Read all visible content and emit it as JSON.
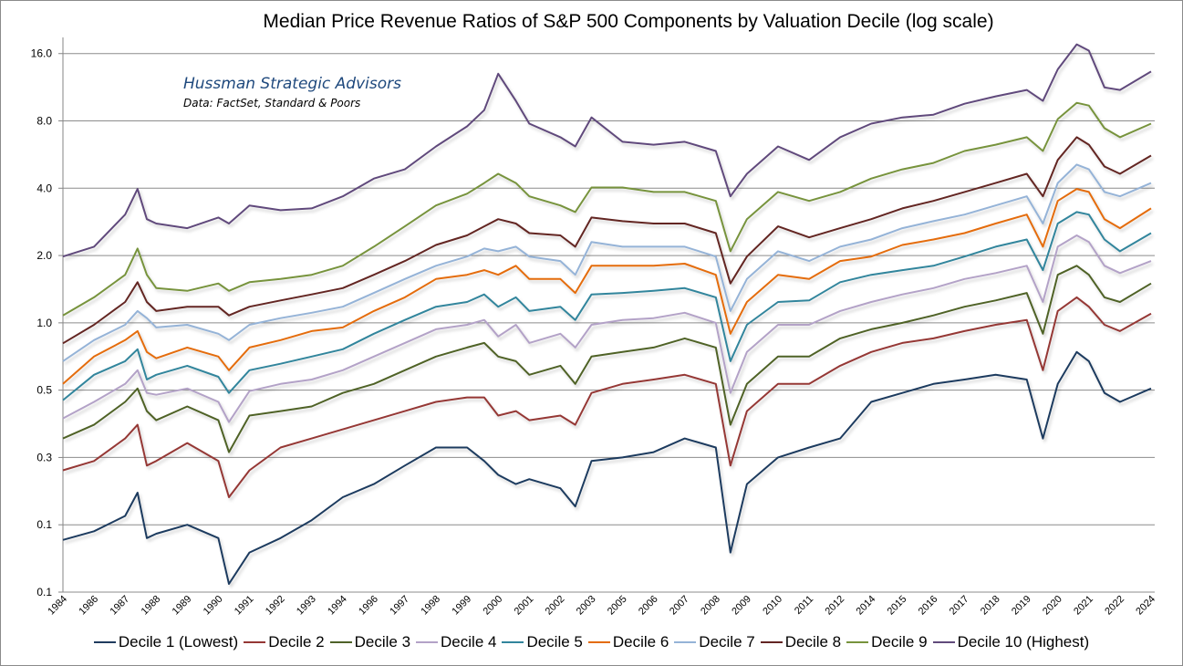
{
  "chart_data": {
    "type": "line",
    "title": "Median Price Revenue Ratios of S&P 500 Components by Valuation Decile (log scale)",
    "annotation": {
      "line1": "Hussman Strategic Advisors",
      "line2": "Data: FactSet, Standard & Poors"
    },
    "y_scale": "log2",
    "ylim": [
      0.0625,
      18.9
    ],
    "y_ticks": [
      16,
      8,
      4,
      2,
      1,
      0.5,
      0.25,
      0.125,
      0.0625
    ],
    "y_tick_labels": [
      "16.0",
      "8.0",
      "4.0",
      "2.0",
      "1.0",
      "0.5",
      "0.3",
      "0.1",
      "0.1"
    ],
    "x_tick_labels": [
      "1984",
      "1986",
      "1987",
      "1988",
      "1989",
      "1990",
      "1991",
      "1992",
      "1993",
      "1994",
      "1996",
      "1997",
      "1998",
      "1999",
      "2000",
      "2001",
      "2002",
      "2003",
      "2005",
      "2006",
      "2007",
      "2008",
      "2009",
      "2010",
      "2011",
      "2012",
      "2014",
      "2015",
      "2016",
      "2017",
      "2018",
      "2019",
      "2020",
      "2021",
      "2022",
      "2024"
    ],
    "grid": true,
    "legend_position": "bottom",
    "x": [
      1984,
      1986,
      1987,
      1987.4,
      1987.7,
      1988,
      1989,
      1990,
      1990.34,
      1991,
      1992,
      1993,
      1994,
      1996,
      1997,
      1998,
      1999,
      1999.55,
      2000,
      2000.57,
      2001,
      2002,
      2002.48,
      2003,
      2005,
      2006,
      2007,
      2008,
      2008.47,
      2009,
      2010,
      2011,
      2012,
      2014,
      2015,
      2016,
      2017,
      2018,
      2019,
      2019.52,
      2020,
      2020.61,
      2021,
      2021.5,
      2022,
      2024
    ],
    "series": [
      {
        "name": "Decile 1 (Lowest)",
        "color": "#1F3B5E",
        "values": [
          0.107,
          0.117,
          0.137,
          0.174,
          0.109,
          0.114,
          0.125,
          0.109,
          0.068,
          0.094,
          0.109,
          0.131,
          0.166,
          0.19,
          0.23,
          0.277,
          0.277,
          0.241,
          0.209,
          0.19,
          0.2,
          0.182,
          0.151,
          0.241,
          0.25,
          0.264,
          0.304,
          0.277,
          0.094,
          0.19,
          0.25,
          0.277,
          0.304,
          0.443,
          0.486,
          0.533,
          0.558,
          0.586,
          0.558,
          0.304,
          0.533,
          0.741,
          0.674,
          0.486,
          0.443,
          0.509
        ]
      },
      {
        "name": "Decile 2",
        "color": "#953735",
        "values": [
          0.219,
          0.241,
          0.304,
          0.35,
          0.23,
          0.241,
          0.29,
          0.241,
          0.166,
          0.219,
          0.277,
          0.304,
          0.334,
          0.367,
          0.403,
          0.443,
          0.464,
          0.464,
          0.385,
          0.403,
          0.367,
          0.385,
          0.35,
          0.486,
          0.533,
          0.558,
          0.586,
          0.533,
          0.23,
          0.403,
          0.533,
          0.533,
          0.643,
          0.741,
          0.813,
          0.852,
          0.919,
          0.98,
          1.03,
          0.614,
          1.13,
          1.3,
          1.18,
          0.98,
          0.919,
          1.1
        ]
      },
      {
        "name": "Decile 3",
        "color": "#4F6228",
        "values": [
          0.304,
          0.35,
          0.443,
          0.509,
          0.403,
          0.367,
          0.423,
          0.367,
          0.264,
          0.385,
          0.403,
          0.423,
          0.486,
          0.533,
          0.614,
          0.707,
          0.776,
          0.813,
          0.707,
          0.674,
          0.586,
          0.643,
          0.533,
          0.707,
          0.741,
          0.776,
          0.852,
          0.776,
          0.35,
          0.533,
          0.707,
          0.707,
          0.852,
          0.936,
          1.0,
          1.08,
          1.18,
          1.26,
          1.36,
          0.894,
          1.64,
          1.8,
          1.64,
          1.3,
          1.24,
          1.5
        ]
      },
      {
        "name": "Decile 4",
        "color": "#B3A2C7",
        "values": [
          0.374,
          0.443,
          0.533,
          0.614,
          0.486,
          0.477,
          0.509,
          0.443,
          0.36,
          0.495,
          0.533,
          0.558,
          0.614,
          0.707,
          0.813,
          0.936,
          0.98,
          1.03,
          0.869,
          0.98,
          0.813,
          0.894,
          0.776,
          0.98,
          1.03,
          1.05,
          1.11,
          1.0,
          0.486,
          0.741,
          0.98,
          0.98,
          1.13,
          1.24,
          1.34,
          1.43,
          1.57,
          1.67,
          1.8,
          1.24,
          2.19,
          2.46,
          2.3,
          1.8,
          1.67,
          1.89
        ]
      },
      {
        "name": "Decile 5",
        "color": "#31859C",
        "values": [
          0.451,
          0.586,
          0.674,
          0.762,
          0.558,
          0.586,
          0.643,
          0.574,
          0.486,
          0.614,
          0.656,
          0.707,
          0.762,
          0.894,
          1.03,
          1.18,
          1.24,
          1.34,
          1.18,
          1.3,
          1.13,
          1.18,
          1.03,
          1.34,
          1.36,
          1.39,
          1.43,
          1.3,
          0.674,
          0.98,
          1.24,
          1.26,
          1.52,
          1.64,
          1.72,
          1.8,
          1.98,
          2.19,
          2.36,
          1.72,
          2.78,
          3.13,
          3.05,
          2.36,
          2.09,
          2.52
        ]
      },
      {
        "name": "Decile 6",
        "color": "#E46C0A",
        "values": [
          0.533,
          0.707,
          0.837,
          0.919,
          0.741,
          0.694,
          0.776,
          0.707,
          0.614,
          0.776,
          0.837,
          0.919,
          0.954,
          1.13,
          1.3,
          1.57,
          1.64,
          1.72,
          1.64,
          1.8,
          1.57,
          1.57,
          1.36,
          1.8,
          1.8,
          1.8,
          1.84,
          1.64,
          0.894,
          1.24,
          1.64,
          1.57,
          1.89,
          1.98,
          2.23,
          2.36,
          2.52,
          2.78,
          3.05,
          2.19,
          3.51,
          3.97,
          3.85,
          2.91,
          2.65,
          3.25
        ]
      },
      {
        "name": "Decile 7",
        "color": "#95B3D7",
        "values": [
          0.674,
          0.837,
          0.98,
          1.13,
          1.05,
          0.954,
          0.98,
          0.894,
          0.837,
          0.98,
          1.05,
          1.11,
          1.18,
          1.36,
          1.57,
          1.8,
          1.98,
          2.15,
          2.09,
          2.19,
          1.98,
          1.89,
          1.64,
          2.3,
          2.19,
          2.19,
          2.19,
          1.98,
          1.13,
          1.57,
          2.09,
          1.89,
          2.19,
          2.36,
          2.65,
          2.85,
          3.05,
          3.35,
          3.68,
          2.78,
          4.22,
          5.1,
          4.86,
          3.85,
          3.68,
          4.22
        ]
      },
      {
        "name": "Decile 8",
        "color": "#632523",
        "values": [
          0.81,
          0.98,
          1.24,
          1.52,
          1.24,
          1.13,
          1.18,
          1.18,
          1.08,
          1.18,
          1.26,
          1.34,
          1.43,
          1.64,
          1.89,
          2.23,
          2.46,
          2.7,
          2.91,
          2.78,
          2.52,
          2.46,
          2.19,
          2.96,
          2.85,
          2.78,
          2.78,
          2.52,
          1.5,
          1.98,
          2.7,
          2.41,
          2.65,
          2.91,
          3.25,
          3.51,
          3.85,
          4.22,
          4.64,
          3.68,
          5.35,
          6.76,
          6.26,
          5.0,
          4.64,
          5.6
        ]
      },
      {
        "name": "Decile 9",
        "color": "#77933C",
        "values": [
          1.08,
          1.3,
          1.64,
          2.15,
          1.64,
          1.43,
          1.39,
          1.5,
          1.39,
          1.52,
          1.57,
          1.64,
          1.8,
          2.19,
          2.7,
          3.35,
          3.78,
          4.22,
          4.64,
          4.22,
          3.68,
          3.35,
          3.13,
          4.03,
          4.03,
          3.85,
          3.85,
          3.51,
          2.09,
          2.91,
          3.85,
          3.51,
          3.85,
          4.42,
          4.86,
          5.19,
          5.87,
          6.26,
          6.76,
          5.87,
          8.15,
          9.64,
          9.37,
          7.42,
          6.76,
          7.78
        ]
      },
      {
        "name": "Decile 10 (Highest)",
        "color": "#604A7B",
        "values": [
          1.98,
          2.19,
          3.05,
          3.97,
          2.91,
          2.78,
          2.65,
          2.96,
          2.78,
          3.35,
          3.19,
          3.25,
          3.68,
          4.42,
          4.86,
          6.15,
          7.56,
          8.94,
          13.0,
          9.83,
          7.78,
          6.76,
          6.15,
          8.29,
          6.45,
          6.26,
          6.45,
          5.87,
          3.68,
          4.64,
          6.15,
          5.35,
          6.76,
          7.78,
          8.29,
          8.53,
          9.55,
          10.3,
          11.0,
          9.83,
          13.6,
          17.6,
          16.5,
          11.3,
          11.0,
          13.3
        ]
      }
    ]
  }
}
